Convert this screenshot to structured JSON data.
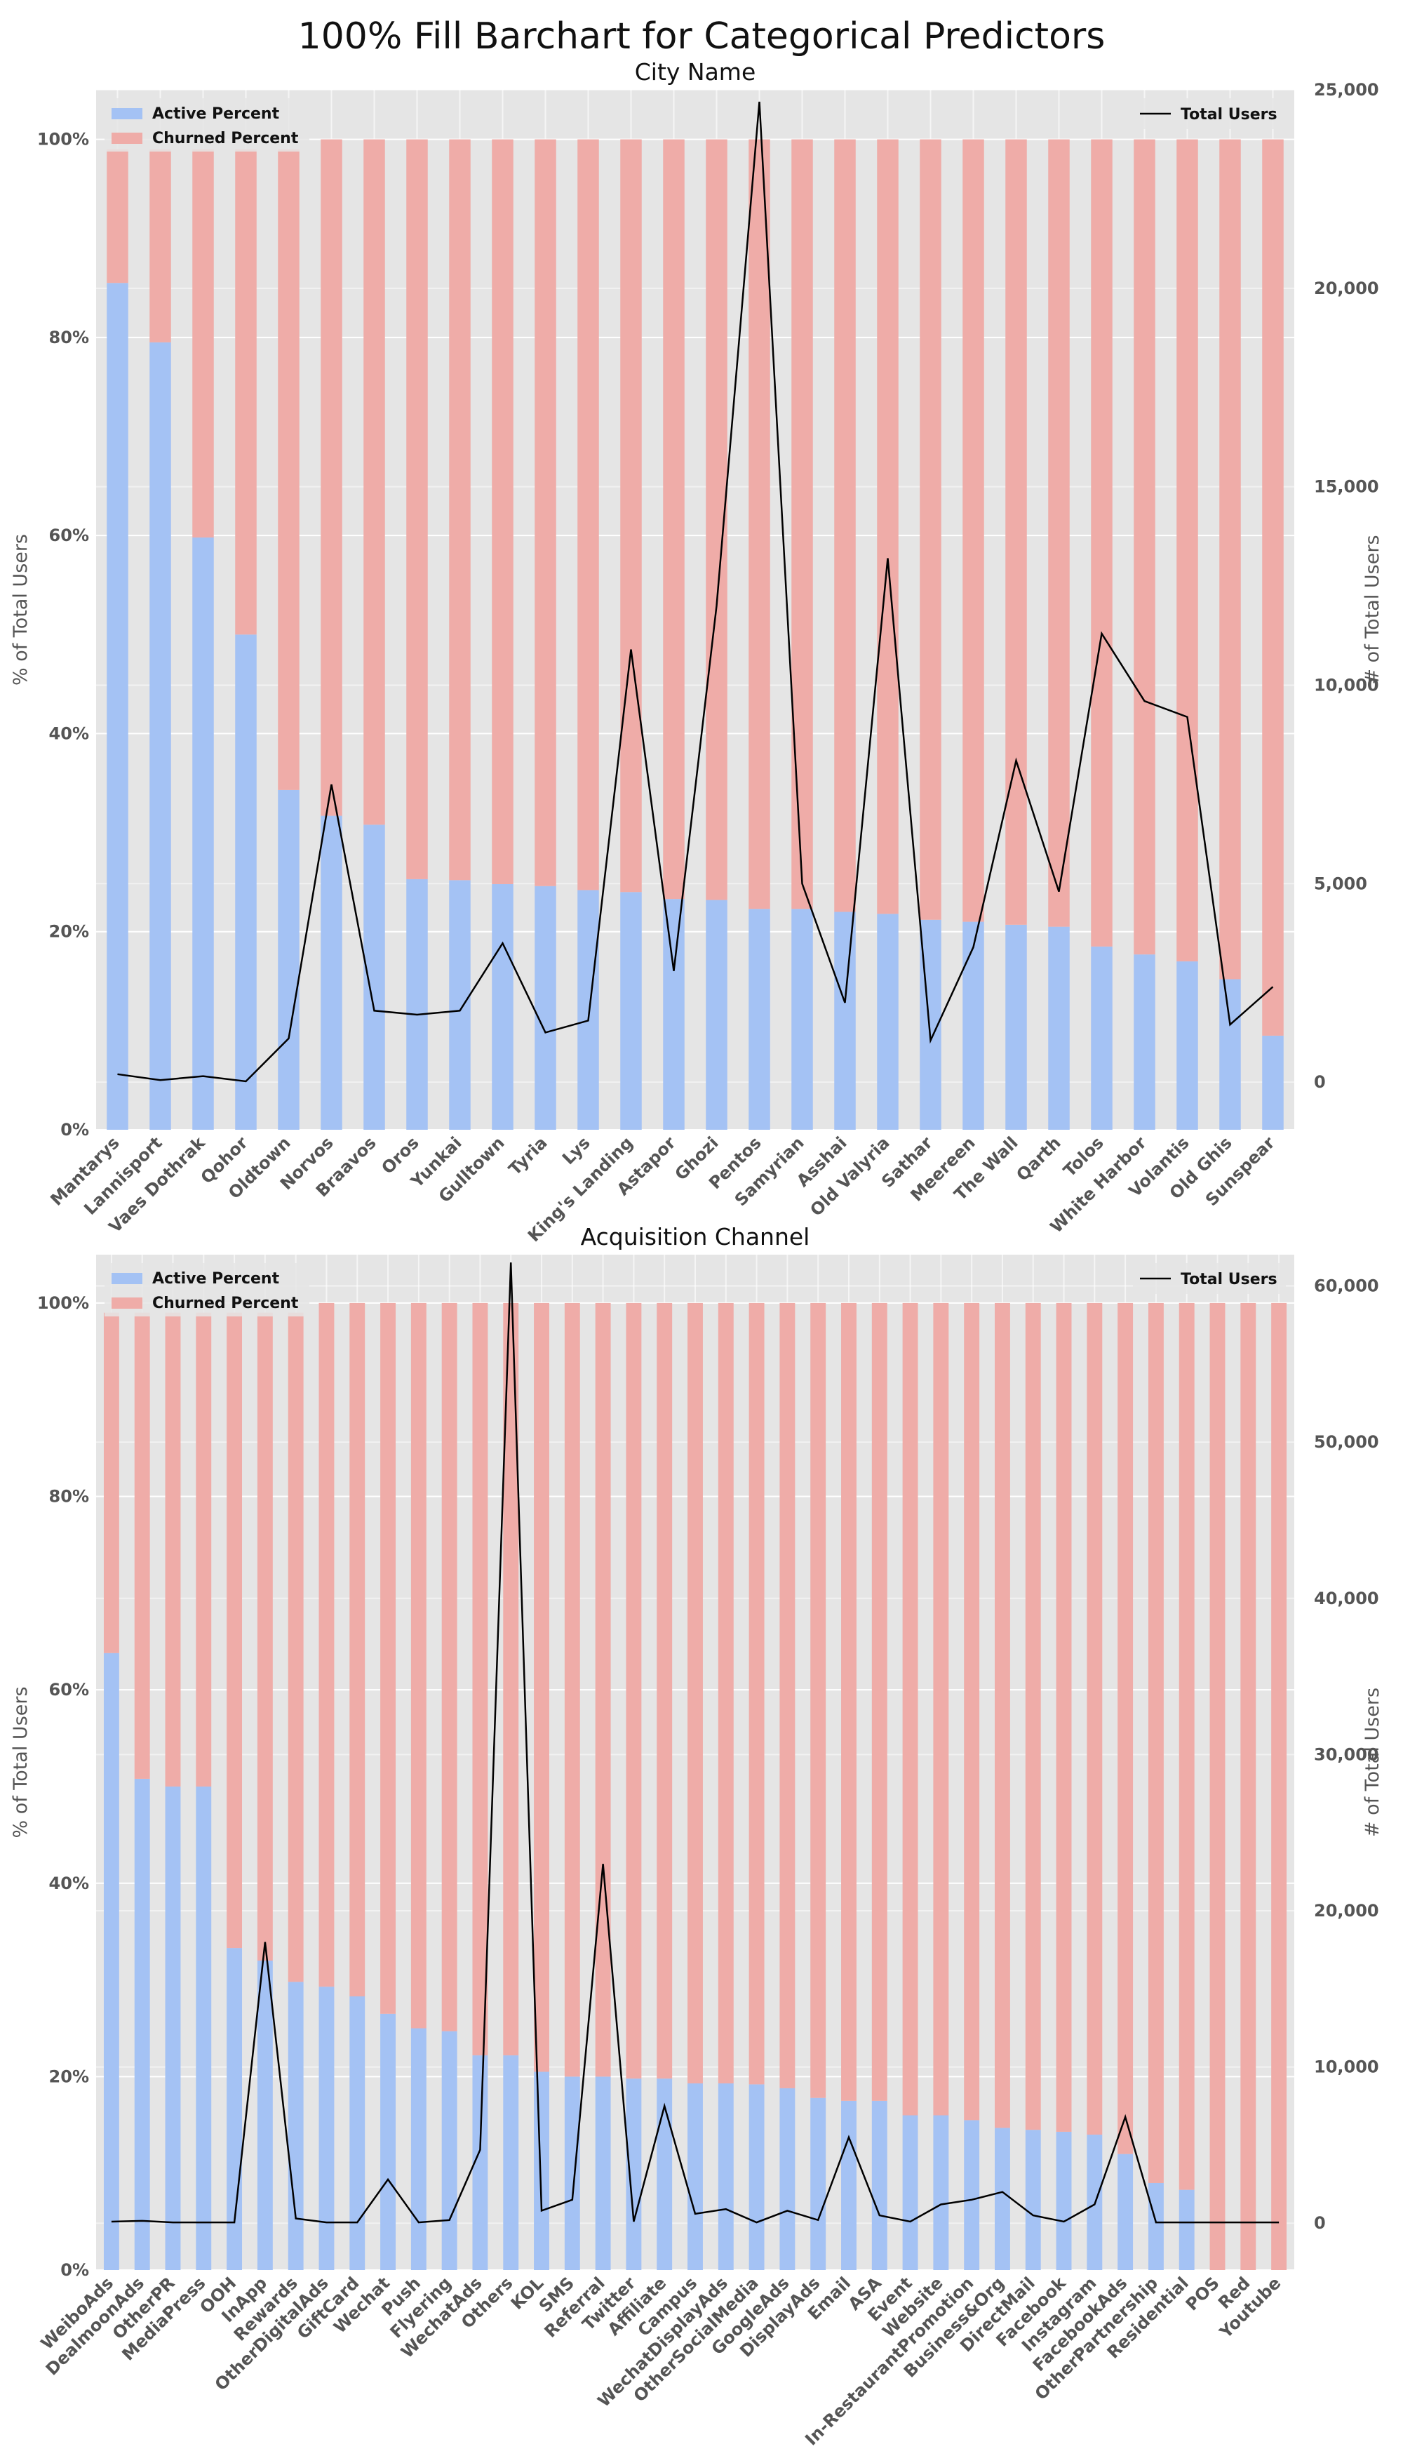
{
  "suptitle": "100% Fill Barchart for Categorical Predictors",
  "colors": {
    "active": "#a4c2f4",
    "churned": "#efaca8",
    "line": "#000000",
    "background": "#e5e5e5"
  },
  "chart_data": [
    {
      "type": "bar",
      "stacked": true,
      "title": "City Name",
      "ylabel": "% of Total Users",
      "y2label": "# of Total Users",
      "ylim": [
        0,
        1.05
      ],
      "y2lim": [
        -1200,
        25000
      ],
      "yticks": [
        "0%",
        "20%",
        "40%",
        "60%",
        "80%",
        "100%"
      ],
      "y2ticks": [
        "0",
        "5,000",
        "10,000",
        "15,000",
        "20,000",
        "25,000"
      ],
      "legend_left": [
        "Active Percent",
        "Churned Percent"
      ],
      "legend_right": "Total Users",
      "legend_positions": [
        "top-left",
        "top-right"
      ],
      "grid": true,
      "categories": [
        "Mantarys",
        "Lannisport",
        "Vaes Dothrak",
        "Qohor",
        "Oldtown",
        "Norvos",
        "Braavos",
        "Oros",
        "Yunkai",
        "Gulltown",
        "Tyria",
        "Lys",
        "King's Landing",
        "Astapor",
        "Ghozi",
        "Pentos",
        "Samyrian",
        "Asshai",
        "Old Valyria",
        "Sathar",
        "Meereen",
        "The Wall",
        "Qarth",
        "Tolos",
        "White Harbor",
        "Volantis",
        "Old Ghis",
        "Sunspear"
      ],
      "series": [
        {
          "name": "Active Percent",
          "values": [
            0.855,
            0.795,
            0.598,
            0.5,
            0.343,
            0.317,
            0.308,
            0.253,
            0.252,
            0.248,
            0.246,
            0.242,
            0.24,
            0.233,
            0.232,
            0.223,
            0.223,
            0.22,
            0.218,
            0.212,
            0.21,
            0.207,
            0.205,
            0.185,
            0.177,
            0.17,
            0.152,
            0.095
          ]
        },
        {
          "name": "Churned Percent",
          "values": [
            0.135,
            0.195,
            0.392,
            0.49,
            0.647,
            0.683,
            0.692,
            0.747,
            0.748,
            0.752,
            0.754,
            0.758,
            0.76,
            0.767,
            0.768,
            0.777,
            0.777,
            0.78,
            0.782,
            0.788,
            0.79,
            0.793,
            0.795,
            0.815,
            0.823,
            0.83,
            0.848,
            0.905
          ]
        },
        {
          "name": "Total Users",
          "axis": "right",
          "values": [
            200,
            50,
            150,
            20,
            1100,
            7500,
            1800,
            1700,
            1800,
            3500,
            1250,
            1550,
            10900,
            2800,
            12000,
            24700,
            5000,
            2000,
            13200,
            1050,
            3400,
            8100,
            4800,
            11300,
            9600,
            9200,
            1450,
            2400
          ]
        }
      ]
    },
    {
      "type": "bar",
      "stacked": true,
      "title": "Acquisition Channel",
      "ylabel": "% of Total Users",
      "y2label": "# of Total Users",
      "ylim": [
        0,
        1.05
      ],
      "y2lim": [
        -3000,
        62000
      ],
      "yticks": [
        "0%",
        "20%",
        "40%",
        "60%",
        "80%",
        "100%"
      ],
      "y2ticks": [
        "0",
        "10,000",
        "20,000",
        "30,000",
        "40,000",
        "50,000",
        "60,000"
      ],
      "legend_left": [
        "Active Percent",
        "Churned Percent"
      ],
      "legend_right": "Total Users",
      "legend_positions": [
        "top-left",
        "top-right"
      ],
      "grid": true,
      "categories": [
        "WeiboAds",
        "DealmoonAds",
        "OtherPR",
        "MediaPress",
        "OOH",
        "InApp",
        "Rewards",
        "OtherDigitalAds",
        "GiftCard",
        "Wechat",
        "Push",
        "Flyering",
        "WechatAds",
        "Others",
        "KOL",
        "SMS",
        "Referral",
        "Twitter",
        "Affiliate",
        "Campus",
        "WechatDisplayAds",
        "OtherSocialMedia",
        "GoogleAds",
        "DisplayAds",
        "Email",
        "ASA",
        "Event",
        "Website",
        "In-RestaurantPromotion",
        "Business&Org",
        "DirectMail",
        "Facebook",
        "Instagram",
        "FacebookAds",
        "OtherPartnership",
        "Residential",
        "POS",
        "Red",
        "Youtube"
      ],
      "series": [
        {
          "name": "Active Percent",
          "values": [
            0.638,
            0.508,
            0.5,
            0.5,
            0.333,
            0.32,
            0.298,
            0.293,
            0.283,
            0.265,
            0.25,
            0.247,
            0.222,
            0.222,
            0.205,
            0.2,
            0.2,
            0.198,
            0.198,
            0.193,
            0.193,
            0.192,
            0.188,
            0.178,
            0.175,
            0.175,
            0.16,
            0.16,
            0.155,
            0.147,
            0.145,
            0.143,
            0.14,
            0.12,
            0.09,
            0.083,
            0.0,
            0.0,
            0.0
          ]
        },
        {
          "name": "Churned Percent",
          "values": [
            0.352,
            0.482,
            0.49,
            0.49,
            0.657,
            0.67,
            0.692,
            0.707,
            0.717,
            0.735,
            0.75,
            0.753,
            0.778,
            0.778,
            0.795,
            0.8,
            0.8,
            0.802,
            0.802,
            0.807,
            0.807,
            0.808,
            0.812,
            0.822,
            0.825,
            0.825,
            0.84,
            0.84,
            0.845,
            0.853,
            0.855,
            0.857,
            0.86,
            0.88,
            0.91,
            0.917,
            1.0,
            1.0,
            1.0
          ]
        },
        {
          "name": "Total Users",
          "axis": "right",
          "values": [
            100,
            150,
            50,
            50,
            50,
            18000,
            300,
            50,
            50,
            2800,
            50,
            200,
            4700,
            61500,
            800,
            1500,
            23000,
            100,
            7500,
            600,
            900,
            50,
            800,
            200,
            5500,
            500,
            100,
            1200,
            1500,
            2000,
            500,
            100,
            1200,
            6800,
            50,
            50,
            50,
            50,
            50
          ]
        }
      ]
    }
  ]
}
